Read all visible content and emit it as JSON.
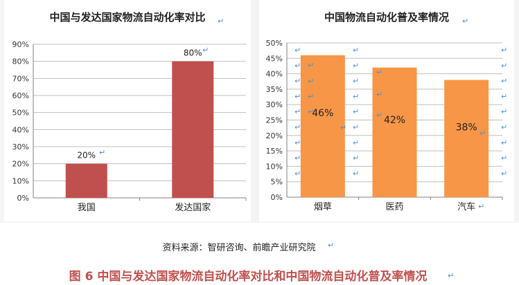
{
  "chart_data": [
    {
      "type": "bar",
      "title": "中国与发达国家物流自动化率对比",
      "categories": [
        "我国",
        "发达国家"
      ],
      "values": [
        20,
        80
      ],
      "data_labels": [
        "20%",
        "80%"
      ],
      "ylim": [
        0,
        90
      ],
      "yticks": [
        "0%",
        "10%",
        "20%",
        "30%",
        "40%",
        "50%",
        "60%",
        "70%",
        "80%",
        "90%"
      ],
      "grid": true,
      "color": "#c0504d",
      "xlabel": "",
      "ylabel": ""
    },
    {
      "type": "bar",
      "title": "中国物流自动化普及率情况",
      "categories": [
        "烟草",
        "医药",
        "汽车"
      ],
      "values": [
        46,
        42,
        38
      ],
      "data_labels": [
        "46%",
        "42%",
        "38%"
      ],
      "ylim": [
        0,
        50
      ],
      "yticks": [
        "0%",
        "5%",
        "10%",
        "15%",
        "20%",
        "25%",
        "30%",
        "35%",
        "40%",
        "45%",
        "50%"
      ],
      "grid": true,
      "color": "#f79646",
      "xlabel": "",
      "ylabel": ""
    }
  ],
  "source": "资料来源：智研咨询、前瞻产业研究院",
  "caption": "图 6 中国与发达国家物流自动化率对比和中国物流自动化普及率情况",
  "return_mark": "↵",
  "colors": {
    "caption": "#c0504d",
    "grid": "#bfbfbf",
    "axis": "#7f7f7f",
    "return_mark": "#4a90d9"
  }
}
